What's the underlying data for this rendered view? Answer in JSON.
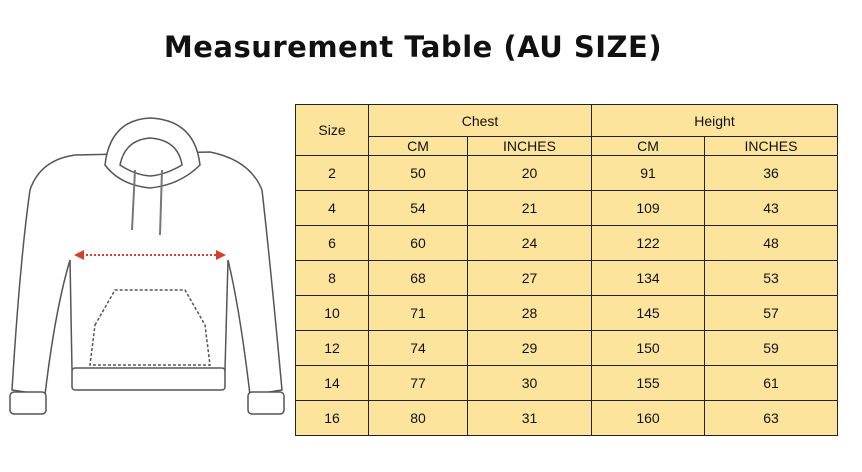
{
  "title": "Measurement Table (AU SIZE)",
  "colors": {
    "table_bg": "#fde49c",
    "arrow": "#d6402a"
  },
  "illustration": {
    "icon": "hoodie-icon",
    "measure": "chest-width-arrow"
  },
  "table": {
    "size_header": "Size",
    "groups": [
      "Chest",
      "Height"
    ],
    "units": [
      "CM",
      "INCHES",
      "CM",
      "INCHES"
    ],
    "rows": [
      [
        "2",
        "50",
        "20",
        "91",
        "36"
      ],
      [
        "4",
        "54",
        "21",
        "109",
        "43"
      ],
      [
        "6",
        "60",
        "24",
        "122",
        "48"
      ],
      [
        "8",
        "68",
        "27",
        "134",
        "53"
      ],
      [
        "10",
        "71",
        "28",
        "145",
        "57"
      ],
      [
        "12",
        "74",
        "29",
        "150",
        "59"
      ],
      [
        "14",
        "77",
        "30",
        "155",
        "61"
      ],
      [
        "16",
        "80",
        "31",
        "160",
        "63"
      ]
    ]
  }
}
